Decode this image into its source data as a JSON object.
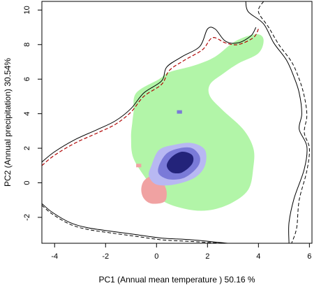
{
  "chart_data": {
    "type": "contour",
    "xlabel": "PC1 (Annual mean temperature ) 50.16 %",
    "ylabel": "PC2 (Annual precipitation) 30.54%",
    "xlim": [
      -4.5,
      6.1
    ],
    "ylim": [
      -3.5,
      10.5
    ],
    "xticks": [
      "-4",
      "-2",
      "0",
      "2",
      "4",
      "6"
    ],
    "xtick_values": [
      -4,
      -2,
      0,
      2,
      4,
      6
    ],
    "yticks": [
      "-2",
      "0",
      "2",
      "4",
      "6",
      "8",
      "10"
    ],
    "ytick_values": [
      -2,
      0,
      2,
      4,
      6,
      8,
      10
    ],
    "colors": {
      "green_region": "#b2f5a8",
      "red_region": "#f0a2a2",
      "blue_light": "#b8b8f2",
      "blue_mid": "#7a7ad8",
      "blue_dark": "#23237a",
      "outline_solid": "#000000",
      "outline_dashed": "#000000",
      "outline_red": "#cc0000"
    },
    "regions": {
      "green": [
        [
          -0.9,
          4.1
        ],
        [
          -0.8,
          5.2
        ],
        [
          0.1,
          6.0
        ],
        [
          0.5,
          6.4
        ],
        [
          1.5,
          6.8
        ],
        [
          2.3,
          7.3
        ],
        [
          3.1,
          8.2
        ],
        [
          3.9,
          8.6
        ],
        [
          4.2,
          8.3
        ],
        [
          4.0,
          7.5
        ],
        [
          3.2,
          6.9
        ],
        [
          2.6,
          6.3
        ],
        [
          2.1,
          5.7
        ],
        [
          2.1,
          5.0
        ],
        [
          2.6,
          4.2
        ],
        [
          3.4,
          3.1
        ],
        [
          3.8,
          2.0
        ],
        [
          3.8,
          0.9
        ],
        [
          3.6,
          -0.4
        ],
        [
          2.9,
          -1.2
        ],
        [
          2.0,
          -1.6
        ],
        [
          1.1,
          -1.5
        ],
        [
          0.2,
          -1.0
        ],
        [
          -0.3,
          0.0
        ],
        [
          -0.9,
          1.4
        ],
        [
          -1.0,
          2.6
        ],
        [
          -0.95,
          3.5
        ]
      ],
      "red": [
        [
          -0.6,
          -0.4
        ],
        [
          -0.5,
          -0.9
        ],
        [
          -0.2,
          -1.2
        ],
        [
          0.3,
          -1.1
        ],
        [
          0.4,
          -0.6
        ],
        [
          0.3,
          -0.1
        ],
        [
          0.1,
          0.3
        ],
        [
          -0.2,
          0.4
        ],
        [
          -0.5,
          0.1
        ]
      ],
      "red_spot": [
        [
          -0.8,
          0.9
        ],
        [
          -0.6,
          0.9
        ],
        [
          -0.6,
          1.1
        ],
        [
          -0.8,
          1.1
        ]
      ],
      "blue_outer": [
        [
          -0.2,
          1.0
        ],
        [
          0.1,
          1.9
        ],
        [
          0.7,
          2.2
        ],
        [
          1.4,
          2.3
        ],
        [
          1.9,
          1.9
        ],
        [
          1.9,
          1.0
        ],
        [
          1.5,
          0.3
        ],
        [
          0.7,
          -0.1
        ],
        [
          0.0,
          -0.1
        ],
        [
          -0.3,
          0.4
        ]
      ],
      "blue_mid": [
        [
          0.1,
          1.0
        ],
        [
          0.4,
          1.7
        ],
        [
          0.9,
          2.0
        ],
        [
          1.4,
          2.0
        ],
        [
          1.7,
          1.5
        ],
        [
          1.6,
          0.9
        ],
        [
          1.1,
          0.3
        ],
        [
          0.5,
          0.2
        ],
        [
          0.1,
          0.5
        ]
      ],
      "blue_core": [
        [
          0.4,
          1.0
        ],
        [
          0.6,
          1.5
        ],
        [
          1.0,
          1.8
        ],
        [
          1.4,
          1.6
        ],
        [
          1.4,
          1.1
        ],
        [
          1.0,
          0.6
        ],
        [
          0.6,
          0.6
        ]
      ],
      "blue_spot": [
        [
          0.8,
          4.0
        ],
        [
          1.0,
          4.0
        ],
        [
          1.0,
          4.2
        ],
        [
          0.8,
          4.2
        ]
      ]
    },
    "outlines": {
      "upper_left_solid": [
        [
          -4.5,
          1.2
        ],
        [
          -4.0,
          1.8
        ],
        [
          -3.2,
          2.5
        ],
        [
          -2.3,
          3.1
        ],
        [
          -1.6,
          3.6
        ],
        [
          -1.0,
          4.3
        ],
        [
          -0.5,
          5.2
        ],
        [
          0.2,
          5.9
        ],
        [
          0.4,
          6.7
        ],
        [
          1.0,
          7.3
        ],
        [
          1.7,
          7.9
        ],
        [
          2.0,
          8.9
        ],
        [
          2.3,
          8.9
        ],
        [
          2.7,
          8.2
        ],
        [
          3.2,
          8.1
        ],
        [
          3.7,
          8.5
        ],
        [
          3.9,
          9.0
        ]
      ],
      "upper_left_dashed": [
        [
          -4.5,
          1.0
        ],
        [
          -4.0,
          1.6
        ],
        [
          -3.2,
          2.3
        ],
        [
          -2.3,
          2.9
        ],
        [
          -1.6,
          3.4
        ],
        [
          -1.0,
          4.1
        ],
        [
          -0.5,
          5.0
        ],
        [
          0.2,
          5.7
        ],
        [
          0.5,
          6.5
        ],
        [
          1.1,
          7.1
        ],
        [
          1.8,
          7.7
        ],
        [
          2.2,
          8.4
        ],
        [
          2.7,
          8.1
        ],
        [
          3.2,
          8.0
        ],
        [
          3.8,
          8.4
        ],
        [
          4.0,
          8.9
        ]
      ],
      "right_solid": [
        [
          3.5,
          10.5
        ],
        [
          3.6,
          9.9
        ],
        [
          4.2,
          9.2
        ],
        [
          4.6,
          8.1
        ],
        [
          5.1,
          7.1
        ],
        [
          5.4,
          6.1
        ],
        [
          5.6,
          5.2
        ],
        [
          5.7,
          4.0
        ],
        [
          5.6,
          3.1
        ],
        [
          5.9,
          2.1
        ],
        [
          5.8,
          0.8
        ],
        [
          5.4,
          -0.9
        ],
        [
          5.2,
          -2.3
        ],
        [
          5.2,
          -3.5
        ]
      ],
      "right_dashed": [
        [
          4.2,
          10.5
        ],
        [
          4.0,
          9.9
        ],
        [
          4.4,
          9.0
        ],
        [
          4.8,
          8.0
        ],
        [
          5.3,
          7.0
        ],
        [
          5.6,
          6.0
        ],
        [
          5.8,
          5.0
        ],
        [
          5.9,
          3.9
        ],
        [
          5.8,
          2.9
        ],
        [
          6.0,
          2.0
        ],
        [
          5.9,
          0.7
        ],
        [
          5.6,
          -1.0
        ],
        [
          5.5,
          -2.6
        ],
        [
          5.3,
          -3.5
        ]
      ],
      "top_solid": [
        [
          3.5,
          10.5
        ],
        [
          3.5,
          10.6
        ]
      ],
      "bottom_solid": [
        [
          -4.5,
          -1.2
        ],
        [
          -4.1,
          -1.7
        ],
        [
          -3.4,
          -2.3
        ],
        [
          -2.7,
          -2.6
        ],
        [
          -1.8,
          -2.8
        ],
        [
          -0.8,
          -3.0
        ],
        [
          0.2,
          -3.2
        ],
        [
          1.4,
          -3.3
        ],
        [
          2.8,
          -3.5
        ]
      ],
      "bottom_dashed": [
        [
          -4.5,
          -1.3
        ],
        [
          -4.1,
          -1.8
        ],
        [
          -3.4,
          -2.4
        ],
        [
          -2.7,
          -2.7
        ],
        [
          -1.8,
          -2.9
        ],
        [
          -0.8,
          -3.1
        ],
        [
          0.2,
          -3.3
        ],
        [
          1.4,
          -3.4
        ],
        [
          2.6,
          -3.5
        ]
      ]
    }
  }
}
